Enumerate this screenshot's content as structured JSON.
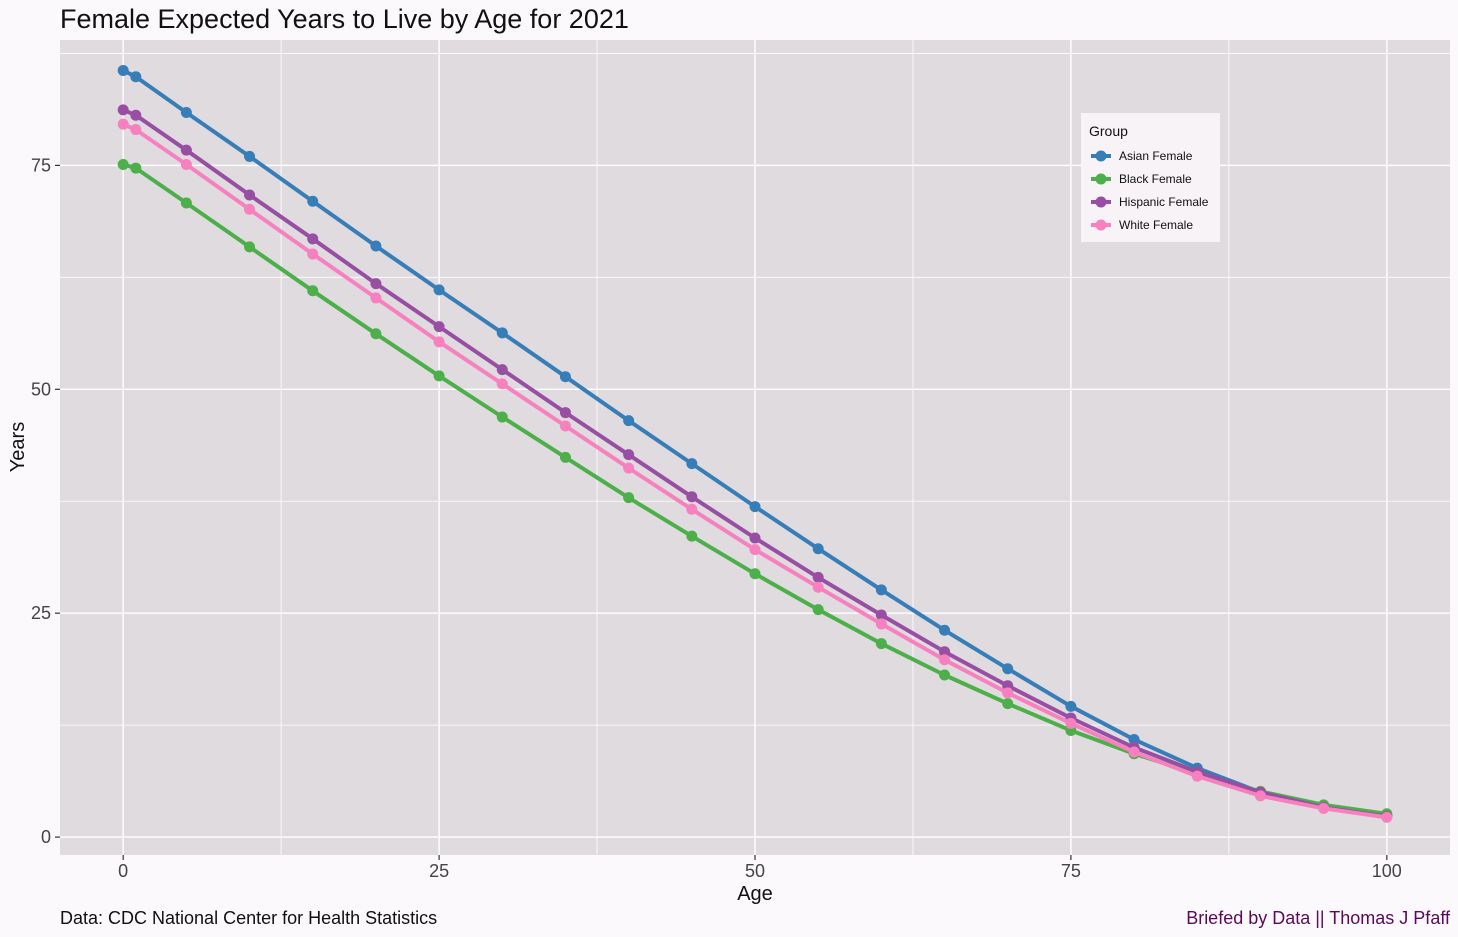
{
  "chart_data": {
    "type": "line",
    "title": "Female Expected Years to Live by Age for 2021",
    "xlabel": "Age",
    "ylabel": "Years",
    "xlim": [
      -5,
      105
    ],
    "ylim": [
      -2,
      89
    ],
    "xticks": [
      0,
      25,
      50,
      75,
      100
    ],
    "yticks": [
      0,
      25,
      50,
      75
    ],
    "grid": true,
    "legend": {
      "title": "Group",
      "position": "top-right"
    },
    "x": [
      0,
      1,
      5,
      10,
      15,
      20,
      25,
      30,
      35,
      40,
      45,
      50,
      55,
      60,
      65,
      70,
      75,
      80,
      85,
      90,
      95,
      100
    ],
    "series": [
      {
        "name": "Asian Female",
        "color": "#377eb8",
        "values": [
          85.6,
          84.9,
          80.9,
          76.0,
          71.0,
          66.0,
          61.1,
          56.3,
          51.4,
          46.5,
          41.7,
          36.9,
          32.2,
          27.6,
          23.1,
          18.8,
          14.6,
          10.9,
          7.7,
          5.0,
          3.4,
          2.4
        ]
      },
      {
        "name": "Black Female",
        "color": "#4daf4a",
        "values": [
          75.1,
          74.7,
          70.8,
          65.9,
          61.0,
          56.2,
          51.5,
          46.9,
          42.4,
          37.9,
          33.6,
          29.4,
          25.4,
          21.6,
          18.1,
          14.9,
          11.9,
          9.3,
          7.1,
          5.1,
          3.6,
          2.6
        ]
      },
      {
        "name": "Hispanic Female",
        "color": "#984ea3",
        "values": [
          81.2,
          80.6,
          76.7,
          71.7,
          66.8,
          61.8,
          57.0,
          52.2,
          47.4,
          42.7,
          38.0,
          33.4,
          29.0,
          24.8,
          20.7,
          16.9,
          13.3,
          10.0,
          7.3,
          5.0,
          3.3,
          2.3
        ]
      },
      {
        "name": "White Female",
        "color": "#f781bf",
        "values": [
          79.6,
          79.0,
          75.1,
          70.1,
          65.1,
          60.2,
          55.3,
          50.6,
          45.9,
          41.2,
          36.6,
          32.1,
          27.9,
          23.8,
          19.8,
          16.1,
          12.7,
          9.5,
          6.8,
          4.6,
          3.2,
          2.2
        ]
      }
    ]
  },
  "captions": {
    "source": "Data: CDC National Center for Health Statistics",
    "credit": "Briefed by Data || Thomas J Pfaff"
  },
  "colors": {
    "panel_background": "#dfdbdf",
    "page_background": "#fbf9fb",
    "gridline": "#ffffff"
  }
}
